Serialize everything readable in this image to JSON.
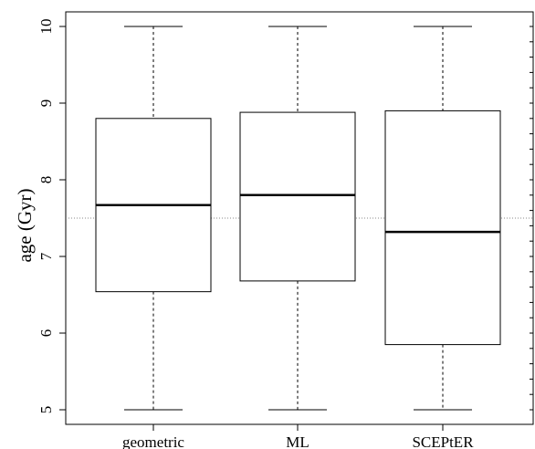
{
  "chart_data": {
    "type": "boxplot",
    "title": "",
    "xlabel": "",
    "ylabel": "age (Gyr)",
    "ylim": [
      4.9,
      10.2
    ],
    "yticks": [
      5,
      6,
      7,
      8,
      9,
      10
    ],
    "categories": [
      "geometric",
      "ML",
      "SCEPtER"
    ],
    "boxes": [
      {
        "label": "geometric",
        "whisker_low": 5.0,
        "q1": 6.54,
        "median": 7.67,
        "q3": 8.8,
        "whisker_high": 10.0
      },
      {
        "label": "ML",
        "whisker_low": 5.0,
        "q1": 6.68,
        "median": 7.8,
        "q3": 8.88,
        "whisker_high": 10.0
      },
      {
        "label": "SCEPtER",
        "whisker_low": 5.0,
        "q1": 5.85,
        "median": 7.32,
        "q3": 8.9,
        "whisker_high": 10.0
      }
    ],
    "reference_line": {
      "y": 7.5,
      "style": "dotted"
    },
    "grid": false,
    "legend": "none"
  }
}
